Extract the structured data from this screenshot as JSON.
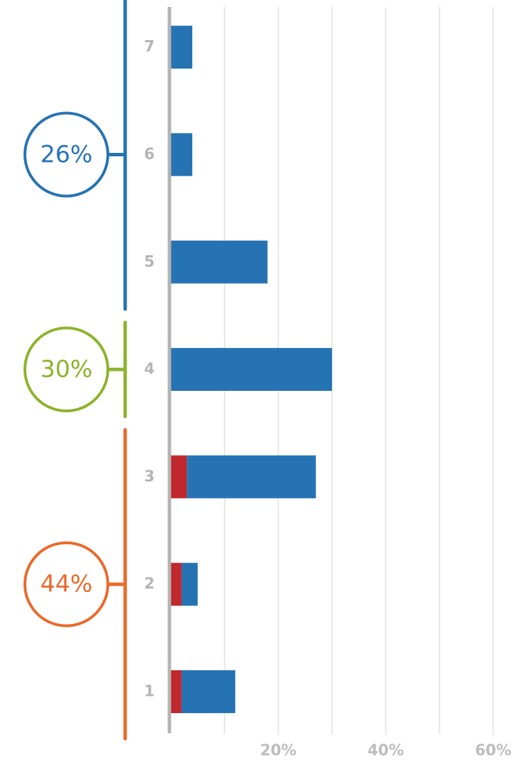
{
  "chart_data": {
    "type": "bar",
    "orientation": "horizontal",
    "stacked": true,
    "categories": [
      "1",
      "2",
      "3",
      "4",
      "5",
      "6",
      "7"
    ],
    "series": [
      {
        "color": "#c0282e",
        "values": [
          2,
          2,
          3,
          0,
          0,
          0,
          0
        ]
      },
      {
        "color": "#2673b4",
        "values": [
          10,
          3,
          24,
          30,
          18,
          4,
          4
        ]
      }
    ],
    "xlim": [
      0,
      60
    ],
    "x_ticks": [
      0,
      10,
      20,
      30,
      40,
      50,
      60
    ],
    "x_tick_labels": [
      {
        "value": 20,
        "label": "20%"
      },
      {
        "value": 40,
        "label": "40%"
      },
      {
        "value": 60,
        "label": "60%"
      }
    ],
    "grid": true,
    "groups": [
      {
        "label": "26%",
        "categories": [
          "5",
          "6",
          "7"
        ],
        "color": "#2673b4"
      },
      {
        "label": "30%",
        "categories": [
          "4"
        ],
        "color": "#8db32c"
      },
      {
        "label": "44%",
        "categories": [
          "1",
          "2",
          "3"
        ],
        "color": "#ea6a2b"
      }
    ]
  }
}
